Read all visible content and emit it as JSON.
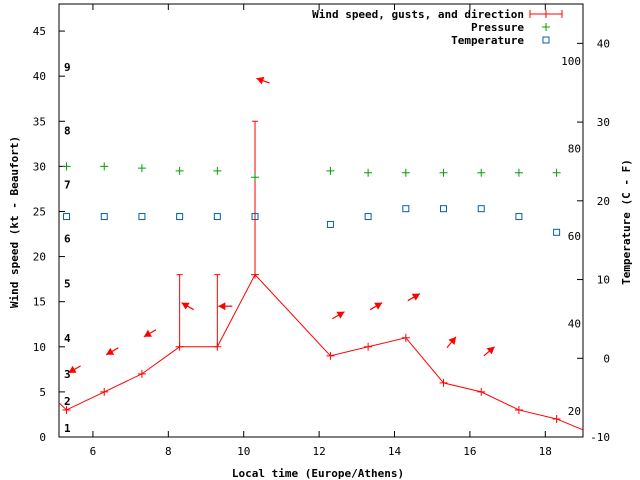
{
  "chart_data": {
    "type": "line",
    "title": "",
    "xlabel": "Local time (Europe/Athens)",
    "ylabel_left": "Wind speed (kt - Beaufort)",
    "ylabel_right": "Temperature (C - F)",
    "xlim": [
      5.1,
      19.0
    ],
    "ylim_left": [
      0,
      48
    ],
    "ylim_right": [
      -10,
      45
    ],
    "x_ticks": [
      6,
      8,
      10,
      12,
      14,
      16,
      18
    ],
    "y_ticks_left": [
      0,
      5,
      10,
      15,
      20,
      25,
      30,
      35,
      40,
      45
    ],
    "y_ticks_right_celsius": [
      -10,
      0,
      10,
      20,
      30,
      40
    ],
    "fahrenheit_ticks": [
      {
        "value": 20,
        "label": "20"
      },
      {
        "value": 40,
        "label": "40"
      },
      {
        "value": 60,
        "label": "60"
      },
      {
        "value": 80,
        "label": "80"
      },
      {
        "value": 100,
        "label": "100"
      }
    ],
    "beaufort_scale": [
      {
        "value": 1,
        "label": "1"
      },
      {
        "value": 2,
        "label": "2"
      },
      {
        "value": 3,
        "label": "3"
      },
      {
        "value": 4,
        "label": "4"
      },
      {
        "value": 5,
        "label": "5"
      },
      {
        "value": 6,
        "label": "6"
      },
      {
        "value": 7,
        "label": "7"
      },
      {
        "value": 8,
        "label": "8"
      },
      {
        "value": 9,
        "label": "9"
      }
    ],
    "legend": [
      {
        "name": "Wind speed, gusts, and direction",
        "color": "#ff0000",
        "marker": "errorbar"
      },
      {
        "name": "Pressure",
        "color": "#00a000",
        "marker": "plus"
      },
      {
        "name": "Temperature",
        "color": "#0060ad",
        "marker": "square"
      }
    ],
    "legend_position": "top-right",
    "series": [
      {
        "name": "Wind speed, gusts, and direction",
        "x": [
          5.3,
          6.3,
          7.3,
          8.3,
          9.3,
          10.3,
          12.3,
          13.3,
          14.3,
          15.3,
          16.3,
          17.3,
          18.3
        ],
        "values": [
          3,
          5,
          7,
          10,
          10,
          18,
          9,
          10,
          11,
          6,
          5,
          3,
          2
        ],
        "gusts": [
          null,
          null,
          null,
          18,
          18,
          35,
          null,
          null,
          null,
          null,
          null,
          null,
          null
        ],
        "direction_deg": [
          60,
          60,
          60,
          120,
          90,
          110,
          240,
          240,
          240,
          220,
          230,
          null,
          null
        ]
      },
      {
        "name": "Pressure",
        "axis": "left",
        "x": [
          5.3,
          6.3,
          7.3,
          8.3,
          9.3,
          10.3,
          12.3,
          13.3,
          14.3,
          15.3,
          16.3,
          17.3,
          18.3
        ],
        "values": [
          30,
          30,
          29.8,
          29.5,
          29.5,
          28.8,
          29.5,
          29.3,
          29.3,
          29.3,
          29.3,
          29.3,
          29.3
        ]
      },
      {
        "name": "Temperature",
        "axis": "right",
        "x": [
          5.3,
          6.3,
          7.3,
          8.3,
          9.3,
          10.3,
          12.3,
          13.3,
          14.3,
          15.3,
          16.3,
          17.3,
          18.3
        ],
        "values": [
          18,
          18,
          18,
          18,
          18,
          18,
          17,
          18,
          19,
          19,
          19,
          18,
          16
        ]
      }
    ]
  }
}
